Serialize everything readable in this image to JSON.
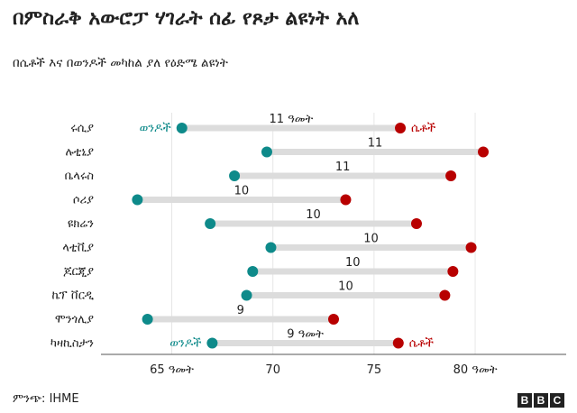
{
  "title": "በምስራቅ አውሮፓ ሃገራት ሰፊ የጾታ ልዩነት አለ",
  "subtitle": "በሴቶች እና በወንዶች መካከል ያለ የዕድሜ ልዩነት",
  "source": "ምንጭ: IHME",
  "logo_text": "BBC",
  "colors": {
    "men": "#0e8a8a",
    "women": "#b80000",
    "bar": "#dcdcdc",
    "grid": "#e6e6e6"
  },
  "chart_data": {
    "type": "dumbbell",
    "title": "በምስራቅ አውሮፓ ሃገራት ሰፊ የጾታ ልዩነት አለ",
    "subtitle": "በሴቶች እና በወንዶች መካከል ያለ የዕድሜ ልዩነት",
    "categories": [
      "ሩሲያ",
      "ሉቲኒያ",
      "ቤላሩስ",
      "ሶሪያ",
      "ዩክሬን",
      "ላቲቪያ",
      "ጆርጂያ",
      "ኬፕ ቨርዲ",
      "ሞንጎሊያ",
      "ካዛኪስታን"
    ],
    "series": [
      {
        "name": "ወንዶች",
        "values": [
          65.5,
          69.7,
          68.1,
          63.3,
          66.9,
          69.9,
          69.0,
          68.7,
          63.8,
          67.0
        ]
      },
      {
        "name": "ሴቶች",
        "values": [
          76.3,
          80.4,
          78.8,
          73.6,
          77.1,
          79.8,
          78.9,
          78.5,
          73.0,
          76.2
        ]
      }
    ],
    "gap_labels": [
      "11 ዓመት",
      "11",
      "11",
      "10",
      "10",
      "10",
      "10",
      "10",
      "9",
      "9 ዓመት"
    ],
    "legend": {
      "men": "ወንዶች",
      "women": "ሴቶች"
    },
    "x_ticks": [
      65,
      70,
      75,
      80
    ],
    "x_tick_labels": [
      "65 ዓመት",
      "70",
      "75",
      "80 ዓመት"
    ],
    "xlim": [
      61.5,
      84.5
    ],
    "grid": true
  }
}
